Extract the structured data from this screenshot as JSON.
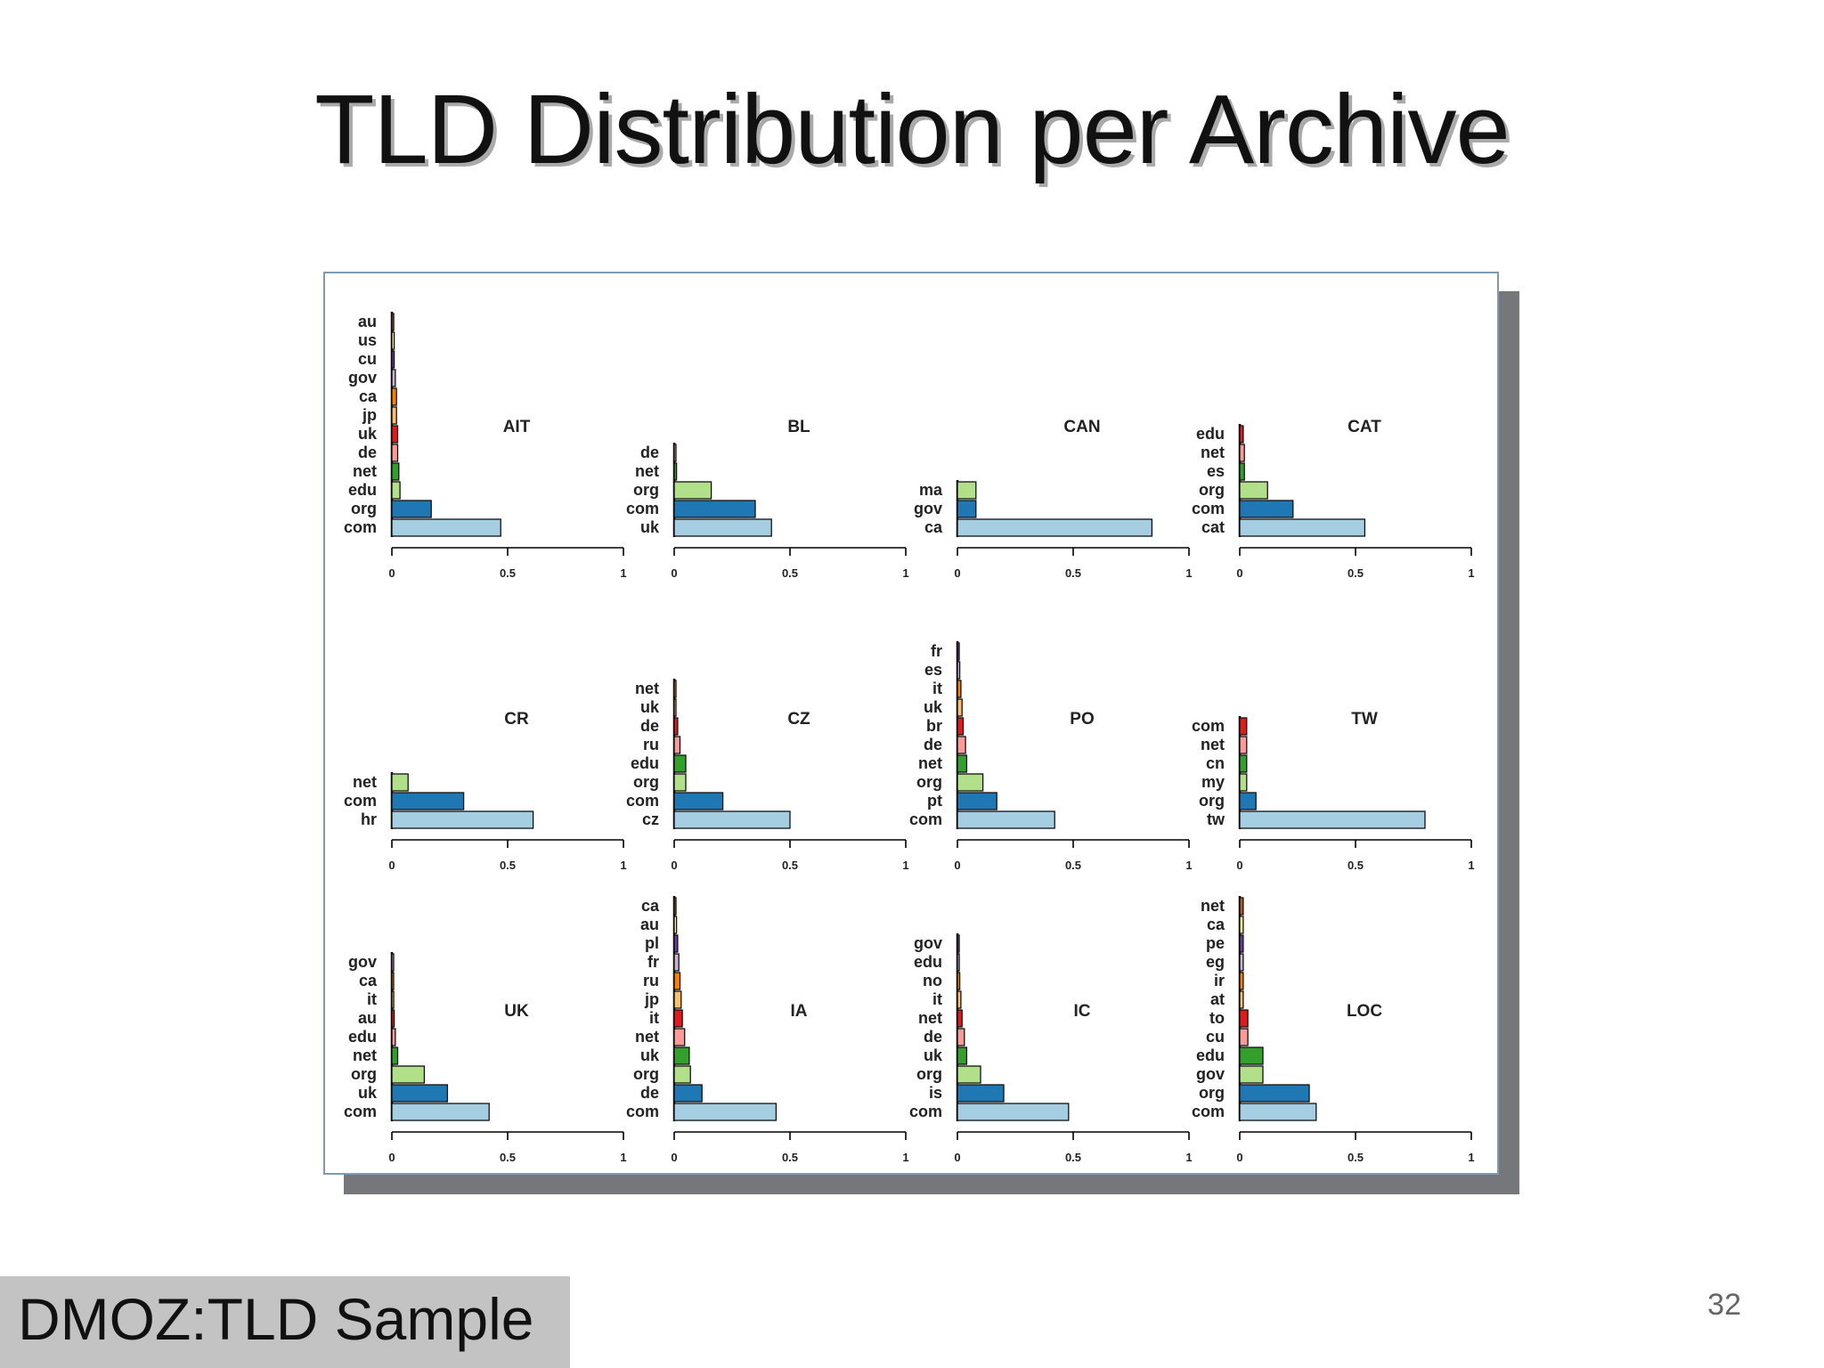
{
  "slide": {
    "title": "TLD Distribution per Archive",
    "caption": "DMOZ:TLD Sample",
    "page_number": "32"
  },
  "colors": {
    "com": "#a6cee3",
    "org": "#1f78b4",
    "edu": "#b2df8a",
    "net": "#33a02c",
    "de": "#fb9a99",
    "uk": "#e31a1c",
    "jp": "#fdbf6f",
    "ca": "#ff7f00",
    "gov": "#cab2d6",
    "cu": "#6a3d9a",
    "us": "#ffff99",
    "au": "#b15928"
  },
  "chart_data": [
    {
      "type": "bar",
      "title": "AIT",
      "xlim": [
        0,
        1
      ],
      "xticks": [
        "0",
        "0.5",
        "1"
      ],
      "categories": [
        "com",
        "org",
        "edu",
        "net",
        "de",
        "uk",
        "jp",
        "ca",
        "gov",
        "cu",
        "us",
        "au"
      ],
      "values": [
        0.47,
        0.17,
        0.035,
        0.03,
        0.025,
        0.025,
        0.02,
        0.02,
        0.015,
        0.01,
        0.01,
        0.008
      ],
      "colors": [
        "#a6cee3",
        "#1f78b4",
        "#b2df8a",
        "#33a02c",
        "#fb9a99",
        "#e31a1c",
        "#fdbf6f",
        "#ff7f00",
        "#cab2d6",
        "#6a3d9a",
        "#ffff99",
        "#b15928"
      ]
    },
    {
      "type": "bar",
      "title": "BL",
      "xlim": [
        0,
        1
      ],
      "xticks": [
        "0",
        "0.5",
        "1"
      ],
      "categories": [
        "uk",
        "com",
        "org",
        "net",
        "de"
      ],
      "values": [
        0.42,
        0.35,
        0.16,
        0.01,
        0.006
      ],
      "colors": [
        "#a6cee3",
        "#1f78b4",
        "#b2df8a",
        "#33a02c",
        "#fb9a99"
      ]
    },
    {
      "type": "bar",
      "title": "CAN",
      "xlim": [
        0,
        1
      ],
      "xticks": [
        "0",
        "0.5",
        "1"
      ],
      "categories": [
        "ca",
        "gov",
        "ma"
      ],
      "values": [
        0.84,
        0.08,
        0.08
      ],
      "colors": [
        "#a6cee3",
        "#1f78b4",
        "#b2df8a"
      ]
    },
    {
      "type": "bar",
      "title": "CAT",
      "xlim": [
        0,
        1
      ],
      "xticks": [
        "0",
        "0.5",
        "1"
      ],
      "categories": [
        "cat",
        "com",
        "org",
        "es",
        "net",
        "edu"
      ],
      "values": [
        0.54,
        0.23,
        0.12,
        0.02,
        0.02,
        0.015
      ],
      "colors": [
        "#a6cee3",
        "#1f78b4",
        "#b2df8a",
        "#33a02c",
        "#fb9a99",
        "#e31a1c"
      ]
    },
    {
      "type": "bar",
      "title": "CR",
      "xlim": [
        0,
        1
      ],
      "xticks": [
        "0",
        "0.5",
        "1"
      ],
      "categories": [
        "hr",
        "com",
        "net"
      ],
      "values": [
        0.61,
        0.31,
        0.07
      ],
      "colors": [
        "#a6cee3",
        "#1f78b4",
        "#b2df8a"
      ]
    },
    {
      "type": "bar",
      "title": "CZ",
      "xlim": [
        0,
        1
      ],
      "xticks": [
        "0",
        "0.5",
        "1"
      ],
      "categories": [
        "cz",
        "com",
        "org",
        "edu",
        "ru",
        "de",
        "uk",
        "net"
      ],
      "values": [
        0.5,
        0.21,
        0.05,
        0.05,
        0.025,
        0.015,
        0.006,
        0.004
      ],
      "colors": [
        "#a6cee3",
        "#1f78b4",
        "#b2df8a",
        "#33a02c",
        "#fb9a99",
        "#e31a1c",
        "#fdbf6f",
        "#ff7f00"
      ]
    },
    {
      "type": "bar",
      "title": "PO",
      "xlim": [
        0,
        1
      ],
      "xticks": [
        "0",
        "0.5",
        "1"
      ],
      "categories": [
        "com",
        "pt",
        "org",
        "net",
        "de",
        "br",
        "uk",
        "it",
        "es",
        "fr"
      ],
      "values": [
        0.42,
        0.17,
        0.11,
        0.04,
        0.035,
        0.025,
        0.02,
        0.015,
        0.01,
        0.005
      ],
      "colors": [
        "#a6cee3",
        "#1f78b4",
        "#b2df8a",
        "#33a02c",
        "#fb9a99",
        "#e31a1c",
        "#fdbf6f",
        "#ff7f00",
        "#cab2d6",
        "#6a3d9a"
      ]
    },
    {
      "type": "bar",
      "title": "TW",
      "xlim": [
        0,
        1
      ],
      "xticks": [
        "0",
        "0.5",
        "1"
      ],
      "categories": [
        "tw",
        "org",
        "my",
        "cn",
        "net",
        "com"
      ],
      "values": [
        0.8,
        0.07,
        0.03,
        0.03,
        0.03,
        0.03
      ],
      "colors": [
        "#a6cee3",
        "#1f78b4",
        "#b2df8a",
        "#33a02c",
        "#fb9a99",
        "#e31a1c"
      ]
    },
    {
      "type": "bar",
      "title": "UK",
      "xlim": [
        0,
        1
      ],
      "xticks": [
        "0",
        "0.5",
        "1"
      ],
      "categories": [
        "com",
        "uk",
        "org",
        "net",
        "edu",
        "au",
        "it",
        "ca",
        "gov"
      ],
      "values": [
        0.42,
        0.24,
        0.14,
        0.025,
        0.015,
        0.01,
        0.008,
        0.006,
        0.005
      ],
      "colors": [
        "#a6cee3",
        "#1f78b4",
        "#b2df8a",
        "#33a02c",
        "#fb9a99",
        "#e31a1c",
        "#fdbf6f",
        "#ff7f00",
        "#cab2d6"
      ]
    },
    {
      "type": "bar",
      "title": "IA",
      "xlim": [
        0,
        1
      ],
      "xticks": [
        "0",
        "0.5",
        "1"
      ],
      "categories": [
        "com",
        "de",
        "org",
        "uk",
        "net",
        "it",
        "jp",
        "ru",
        "fr",
        "pl",
        "au",
        "ca"
      ],
      "values": [
        0.44,
        0.12,
        0.07,
        0.065,
        0.045,
        0.035,
        0.03,
        0.025,
        0.02,
        0.015,
        0.01,
        0.006
      ],
      "colors": [
        "#a6cee3",
        "#1f78b4",
        "#b2df8a",
        "#33a02c",
        "#fb9a99",
        "#e31a1c",
        "#fdbf6f",
        "#ff7f00",
        "#cab2d6",
        "#6a3d9a",
        "#ffff99",
        "#b15928"
      ]
    },
    {
      "type": "bar",
      "title": "IC",
      "xlim": [
        0,
        1
      ],
      "xticks": [
        "0",
        "0.5",
        "1"
      ],
      "categories": [
        "com",
        "is",
        "org",
        "uk",
        "de",
        "net",
        "it",
        "no",
        "edu",
        "gov"
      ],
      "values": [
        0.48,
        0.2,
        0.1,
        0.04,
        0.03,
        0.02,
        0.015,
        0.01,
        0.008,
        0.006
      ],
      "colors": [
        "#a6cee3",
        "#1f78b4",
        "#b2df8a",
        "#33a02c",
        "#fb9a99",
        "#e31a1c",
        "#fdbf6f",
        "#ff7f00",
        "#cab2d6",
        "#6a3d9a"
      ]
    },
    {
      "type": "bar",
      "title": "LOC",
      "xlim": [
        0,
        1
      ],
      "xticks": [
        "0",
        "0.5",
        "1"
      ],
      "categories": [
        "com",
        "org",
        "gov",
        "edu",
        "cu",
        "to",
        "at",
        "ir",
        "eg",
        "pe",
        "ca",
        "net"
      ],
      "values": [
        0.33,
        0.3,
        0.1,
        0.1,
        0.035,
        0.035,
        0.015,
        0.015,
        0.015,
        0.015,
        0.015,
        0.015
      ],
      "colors": [
        "#a6cee3",
        "#1f78b4",
        "#b2df8a",
        "#33a02c",
        "#fb9a99",
        "#e31a1c",
        "#fdbf6f",
        "#ff7f00",
        "#cab2d6",
        "#6a3d9a",
        "#ffff99",
        "#b15928"
      ]
    }
  ]
}
